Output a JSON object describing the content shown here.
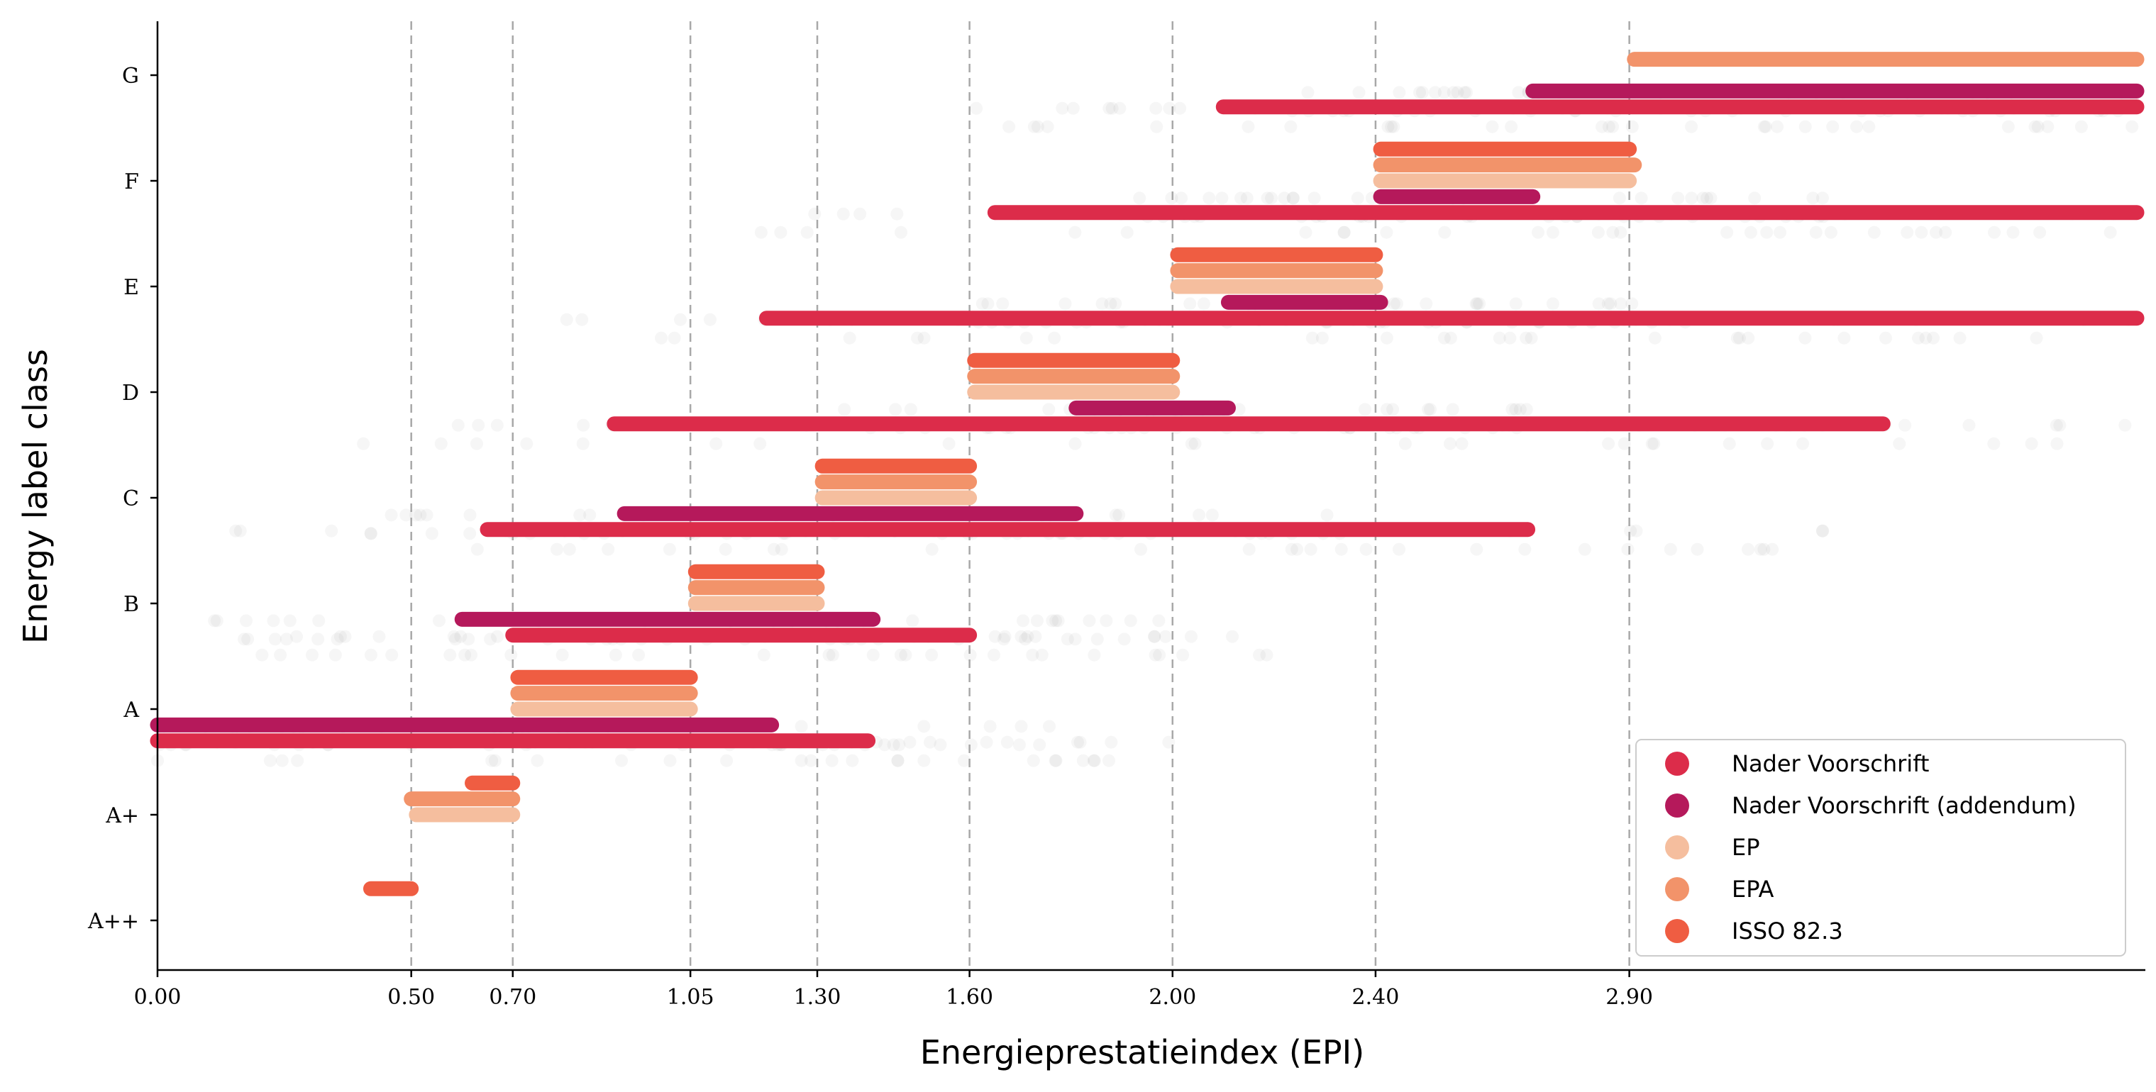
{
  "chart_data": {
    "type": "scatter",
    "title": "",
    "xlabel": "Energieprestatieindex (EPI)",
    "ylabel": "Energy label class",
    "xlim": [
      0,
      3.9
    ],
    "x_ticks": [
      0.0,
      0.5,
      0.7,
      1.05,
      1.3,
      1.6,
      2.0,
      2.4,
      2.9
    ],
    "x_tick_labels": [
      "0.00",
      "0.50",
      "0.70",
      "1.05",
      "1.30",
      "1.60",
      "2.00",
      "2.40",
      "2.90"
    ],
    "dashed_vlines": [
      0.5,
      0.7,
      1.05,
      1.3,
      1.6,
      2.0,
      2.4,
      2.9
    ],
    "categories": [
      "A++",
      "A+",
      "A",
      "B",
      "C",
      "D",
      "E",
      "F",
      "G"
    ],
    "grid": false,
    "legend_position": "lower-right",
    "series": [
      {
        "name": "Nader Voorschrift",
        "color": "#DC2C4A",
        "offset": -0.3,
        "ranges": [
          {
            "label": "A",
            "x": [
              0.0,
              1.4
            ]
          },
          {
            "label": "B",
            "x": [
              0.7,
              1.6
            ]
          },
          {
            "label": "C",
            "x": [
              0.65,
              2.7
            ]
          },
          {
            "label": "D",
            "x": [
              0.9,
              3.4
            ]
          },
          {
            "label": "E",
            "x": [
              1.2,
              3.9
            ]
          },
          {
            "label": "F",
            "x": [
              1.65,
              3.9
            ]
          },
          {
            "label": "G",
            "x": [
              2.1,
              3.9
            ]
          }
        ]
      },
      {
        "name": "Nader Voorschrift (addendum)",
        "color": "#B5195B",
        "offset": -0.15,
        "ranges": [
          {
            "label": "A",
            "x": [
              0.0,
              1.21
            ]
          },
          {
            "label": "B",
            "x": [
              0.6,
              1.41
            ]
          },
          {
            "label": "C",
            "x": [
              0.92,
              1.81
            ]
          },
          {
            "label": "D",
            "x": [
              1.81,
              2.11
            ]
          },
          {
            "label": "E",
            "x": [
              2.11,
              2.41
            ]
          },
          {
            "label": "F",
            "x": [
              2.41,
              2.71
            ]
          },
          {
            "label": "G",
            "x": [
              2.71,
              3.9
            ]
          }
        ]
      },
      {
        "name": "EP",
        "color": "#F5BE9E",
        "offset": 0.0,
        "ranges": [
          {
            "label": "A+",
            "x": [
              0.51,
              0.7
            ]
          },
          {
            "label": "A",
            "x": [
              0.71,
              1.05
            ]
          },
          {
            "label": "B",
            "x": [
              1.06,
              1.3
            ]
          },
          {
            "label": "C",
            "x": [
              1.31,
              1.6
            ]
          },
          {
            "label": "D",
            "x": [
              1.61,
              2.0
            ]
          },
          {
            "label": "E",
            "x": [
              2.01,
              2.4
            ]
          },
          {
            "label": "F",
            "x": [
              2.41,
              2.9
            ]
          }
        ]
      },
      {
        "name": "EPA",
        "color": "#F2936A",
        "offset": 0.15,
        "ranges": [
          {
            "label": "A+",
            "x": [
              0.5,
              0.7
            ]
          },
          {
            "label": "A",
            "x": [
              0.71,
              1.05
            ]
          },
          {
            "label": "B",
            "x": [
              1.06,
              1.3
            ]
          },
          {
            "label": "C",
            "x": [
              1.31,
              1.6
            ]
          },
          {
            "label": "D",
            "x": [
              1.61,
              2.0
            ]
          },
          {
            "label": "E",
            "x": [
              2.01,
              2.4
            ]
          },
          {
            "label": "F",
            "x": [
              2.41,
              2.91
            ]
          },
          {
            "label": "G",
            "x": [
              2.91,
              3.9
            ]
          }
        ]
      },
      {
        "name": "ISSO 82.3",
        "color": "#EF5D42",
        "offset": 0.3,
        "ranges": [
          {
            "label": "A++",
            "x": [
              0.42,
              0.5
            ]
          },
          {
            "label": "A+",
            "x": [
              0.62,
              0.7
            ]
          },
          {
            "label": "A",
            "x": [
              0.71,
              1.05
            ]
          },
          {
            "label": "B",
            "x": [
              1.06,
              1.3
            ]
          },
          {
            "label": "C",
            "x": [
              1.31,
              1.6
            ]
          },
          {
            "label": "D",
            "x": [
              1.61,
              2.0
            ]
          },
          {
            "label": "E",
            "x": [
              2.01,
              2.4
            ]
          },
          {
            "label": "F",
            "x": [
              2.41,
              2.9
            ]
          }
        ]
      }
    ]
  }
}
